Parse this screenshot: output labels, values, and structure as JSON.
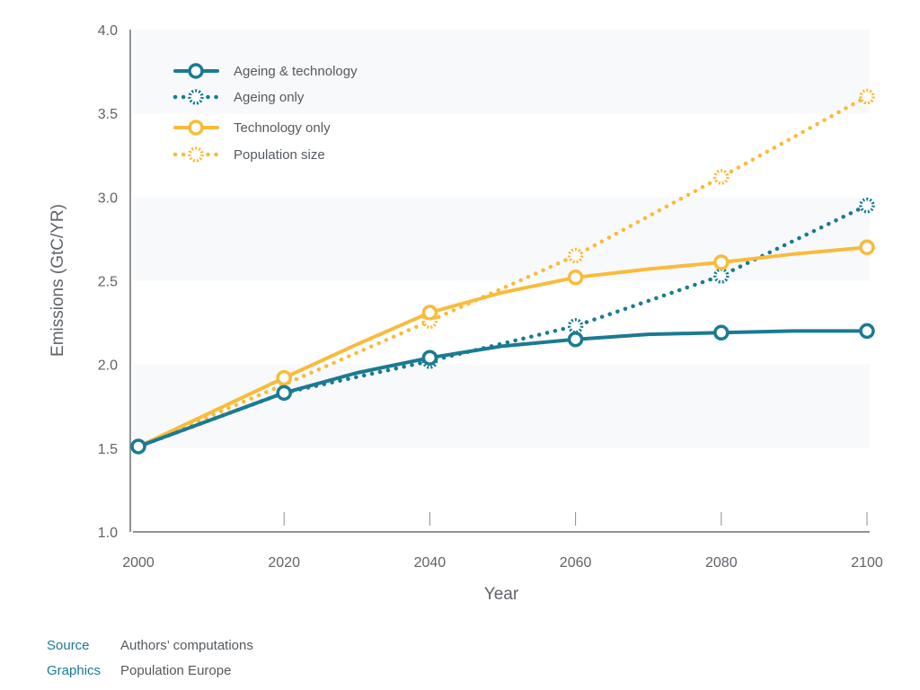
{
  "chart_data": {
    "type": "line",
    "title": "",
    "xlabel": "Year",
    "ylabel": "Emissions (GtC/YR)",
    "xlim": [
      2000,
      2100
    ],
    "ylim": [
      1.0,
      4.0
    ],
    "x_ticks": [
      2000,
      2020,
      2040,
      2060,
      2080,
      2100
    ],
    "x_tick_labels": [
      "2000",
      "2020",
      "2040",
      "2060",
      "2080",
      "2100"
    ],
    "y_ticks": [
      1.0,
      1.5,
      2.0,
      2.5,
      3.0,
      3.5,
      4.0
    ],
    "y_tick_labels": [
      "1.0",
      "1.5",
      "2.0",
      "2.5",
      "3.0",
      "3.5",
      "4.0"
    ],
    "grid": "alternating horizontal bands",
    "legend_position": "top-left",
    "series": [
      {
        "name": "Ageing & technology",
        "color": "#1b7a93",
        "style": "solid",
        "marker": "open-circle",
        "x": [
          2000,
          2020,
          2030,
          2040,
          2050,
          2060,
          2070,
          2080,
          2090,
          2100
        ],
        "values": [
          1.51,
          1.83,
          1.95,
          2.04,
          2.11,
          2.15,
          2.18,
          2.19,
          2.2,
          2.2
        ],
        "marker_x": [
          2000,
          2020,
          2040,
          2060,
          2080,
          2100
        ]
      },
      {
        "name": "Ageing only",
        "color": "#1b7a93",
        "style": "dotted",
        "marker": "dashed-circle",
        "x": [
          2000,
          2020,
          2040,
          2060,
          2080,
          2100
        ],
        "values": [
          1.51,
          1.83,
          2.02,
          2.23,
          2.53,
          2.95
        ],
        "marker_x": [
          2040,
          2060,
          2080,
          2100
        ]
      },
      {
        "name": "Technology only",
        "color": "#f9bb3c",
        "style": "solid",
        "marker": "open-circle",
        "x": [
          2000,
          2020,
          2030,
          2040,
          2050,
          2060,
          2070,
          2080,
          2090,
          2100
        ],
        "values": [
          1.51,
          1.92,
          2.12,
          2.31,
          2.43,
          2.52,
          2.57,
          2.61,
          2.66,
          2.7
        ],
        "marker_x": [
          2020,
          2040,
          2060,
          2080,
          2100
        ]
      },
      {
        "name": "Population size",
        "color": "#f9bb3c",
        "style": "dotted",
        "marker": "dashed-circle",
        "x": [
          2000,
          2020,
          2040,
          2060,
          2080,
          2100
        ],
        "values": [
          1.51,
          1.88,
          2.26,
          2.65,
          3.12,
          3.6
        ],
        "marker_x": [
          2040,
          2060,
          2080,
          2100
        ]
      }
    ]
  },
  "footer": {
    "source_key": "Source",
    "source_value": "Authors’ computations",
    "graphics_key": "Graphics",
    "graphics_value": "Population Europe"
  }
}
